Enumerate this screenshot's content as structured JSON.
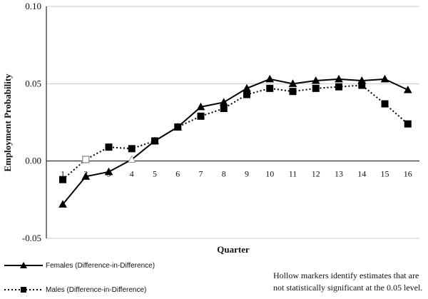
{
  "chart_data": {
    "type": "line",
    "title": "",
    "xlabel": "Quarter",
    "ylabel": "Employment Probability",
    "x": [
      1,
      2,
      3,
      4,
      5,
      6,
      7,
      8,
      9,
      10,
      11,
      12,
      13,
      14,
      15,
      16
    ],
    "x_tick_labels": [
      "1",
      "2",
      "3",
      "4",
      "5",
      "6",
      "7",
      "8",
      "9",
      "10",
      "11",
      "12",
      "13",
      "14",
      "15",
      "16"
    ],
    "y_tick_labels": [
      "0.10",
      "0.05",
      "0.00",
      "-0.05"
    ],
    "y_ticks": [
      0.1,
      0.05,
      0.0,
      -0.05
    ],
    "ylim": [
      -0.05,
      0.1
    ],
    "grid": "horizontal",
    "legend_position": "bottom-left",
    "series": [
      {
        "name": "Females (Difference-in-Difference)",
        "marker": "triangle",
        "line_style": "solid",
        "color": "#000000",
        "values": [
          -0.028,
          -0.01,
          -0.007,
          0.001,
          0.013,
          0.022,
          0.035,
          0.038,
          0.047,
          0.053,
          0.05,
          0.052,
          0.053,
          0.052,
          0.053,
          0.046
        ],
        "significant": [
          true,
          true,
          true,
          false,
          true,
          true,
          true,
          true,
          true,
          true,
          true,
          true,
          true,
          true,
          true,
          true
        ]
      },
      {
        "name": "Males (Difference-in-Difference)",
        "marker": "square",
        "line_style": "dotted",
        "color": "#000000",
        "values": [
          -0.012,
          0.001,
          0.009,
          0.008,
          0.013,
          0.022,
          0.029,
          0.034,
          0.043,
          0.047,
          0.045,
          0.047,
          0.048,
          0.049,
          0.037,
          0.024
        ],
        "significant": [
          true,
          false,
          true,
          true,
          true,
          true,
          true,
          true,
          true,
          true,
          true,
          true,
          true,
          true,
          true,
          true
        ]
      }
    ],
    "note": "Hollow markers identify estimates that are not statistically significant at the 0.05 level."
  }
}
